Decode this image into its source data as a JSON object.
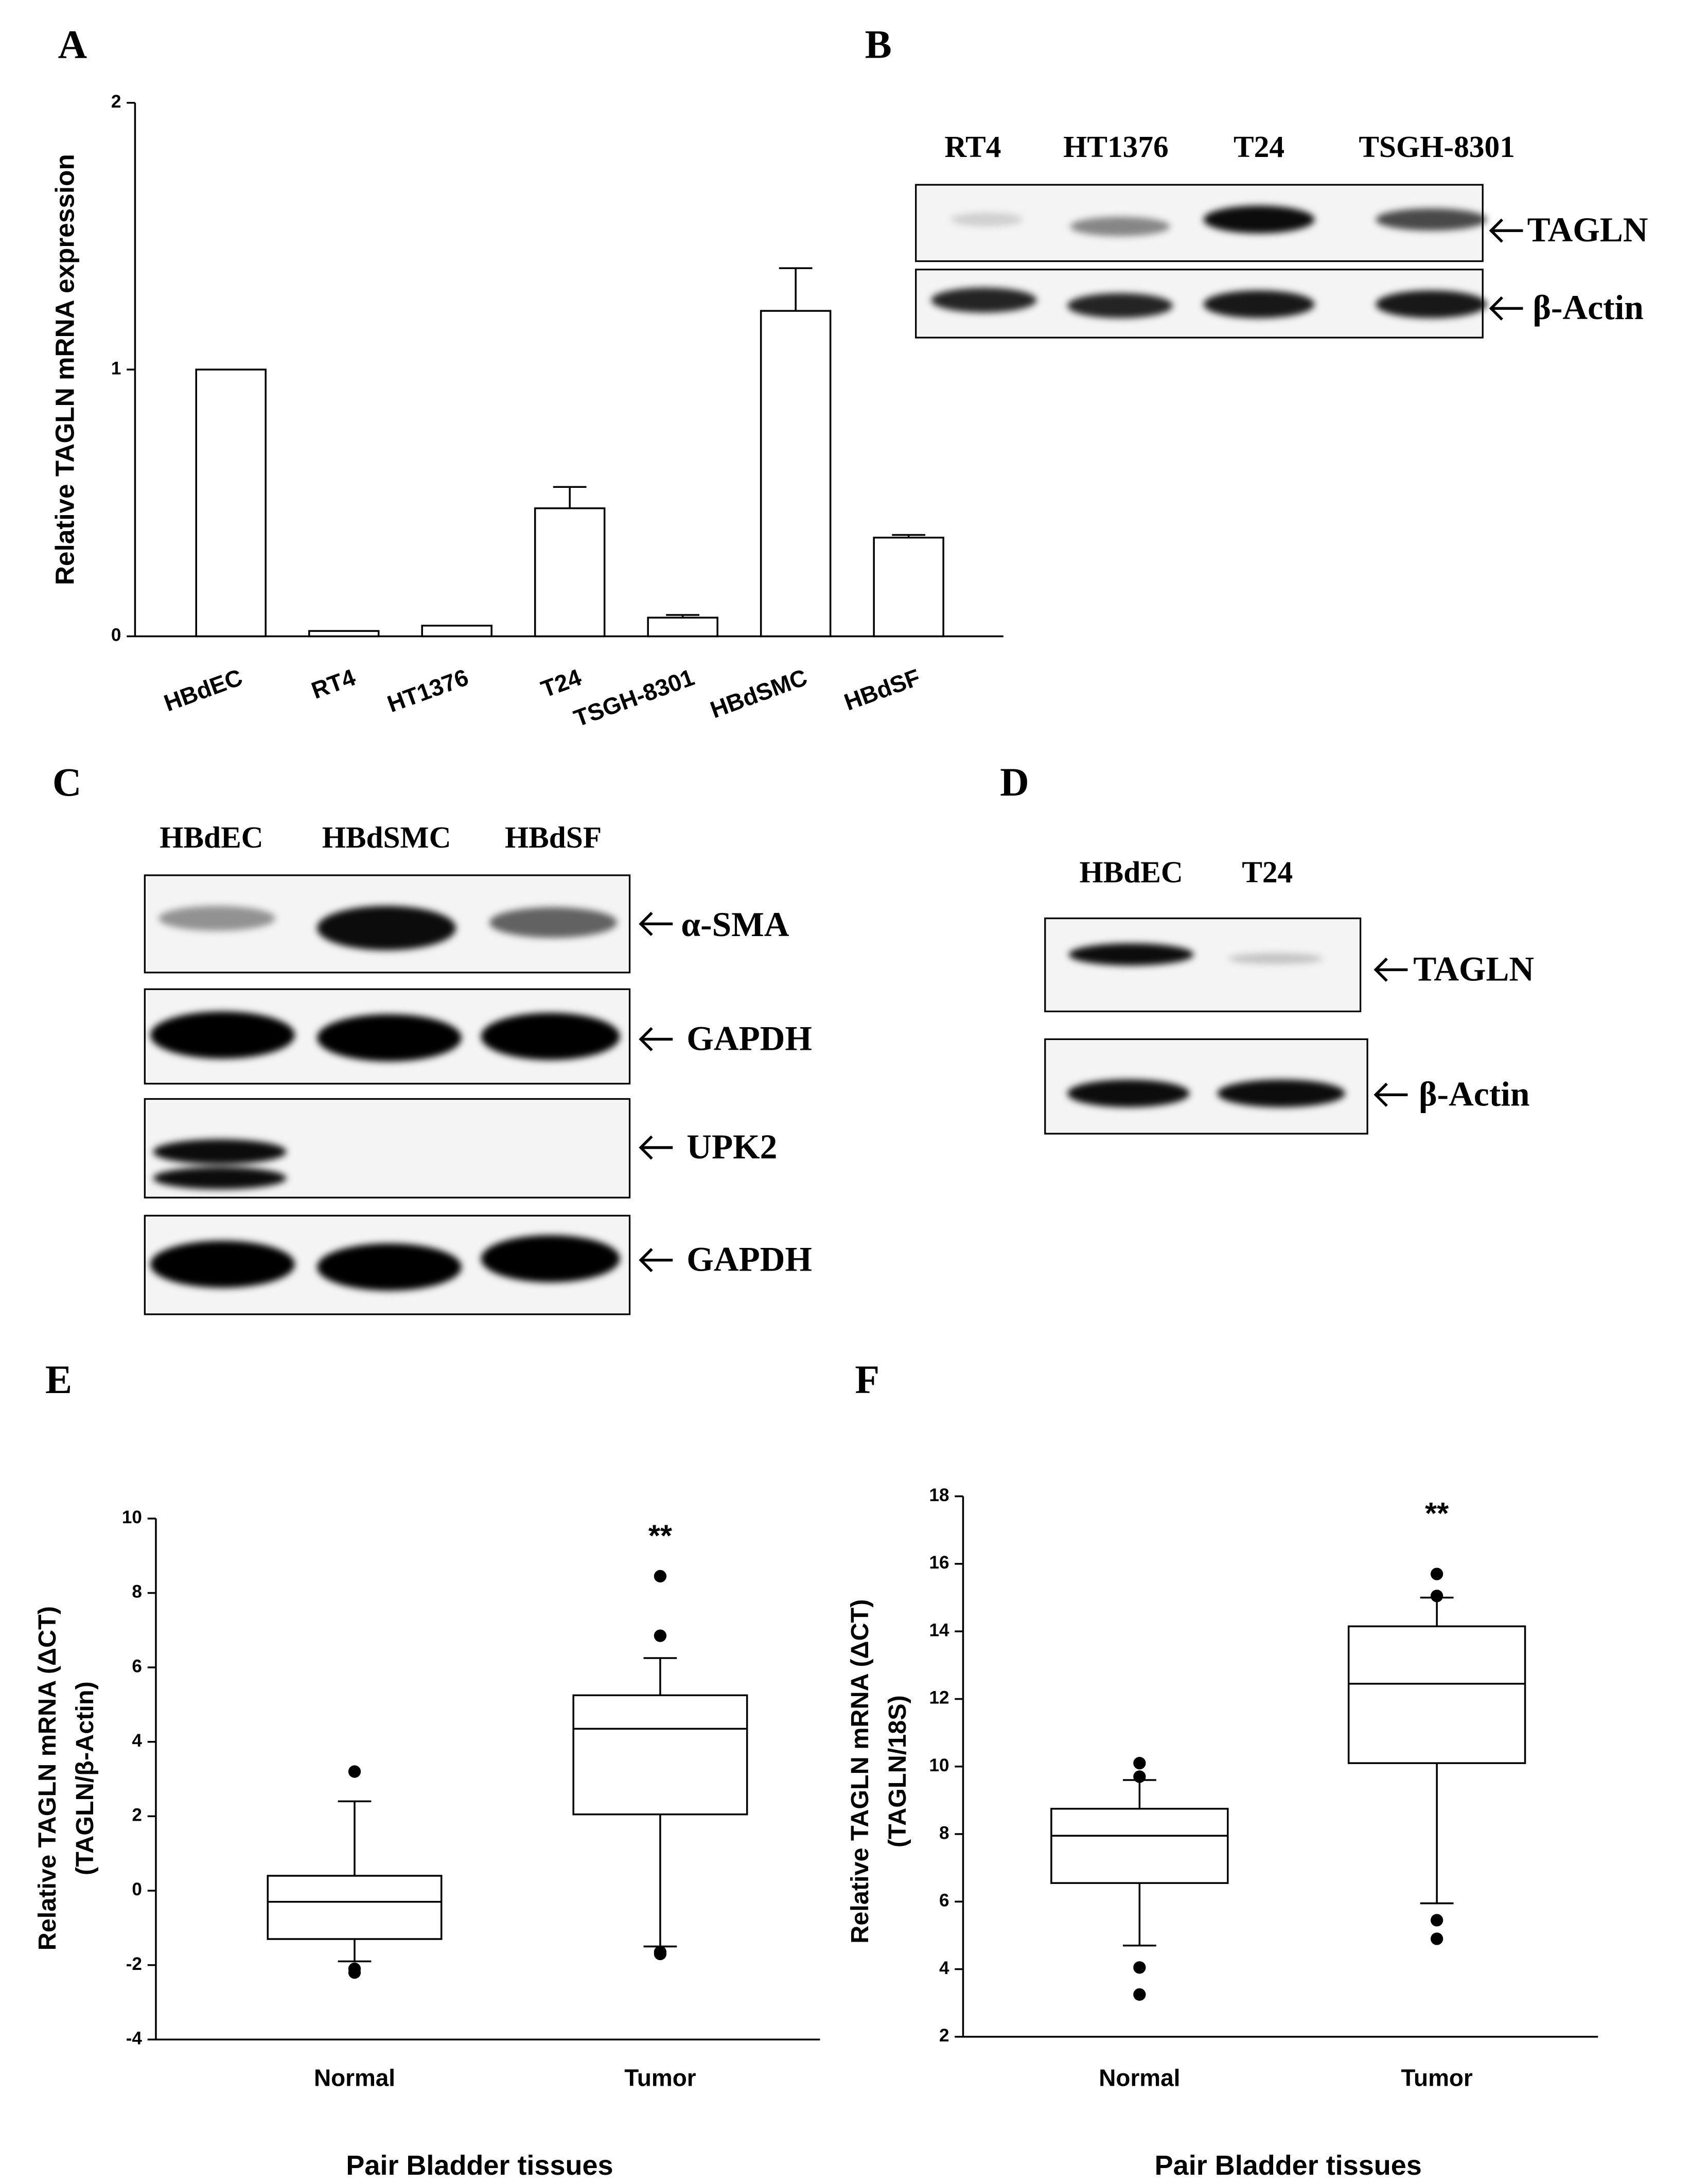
{
  "panel_labels": [
    "A",
    "B",
    "C",
    "D",
    "E",
    "F"
  ],
  "chart_data": [
    {
      "type": "bar",
      "ylabel": [
        "Relative TAGLN mRNA expression"
      ],
      "categories": [
        "HBdEC",
        "RT4",
        "HT1376",
        "T24",
        "TSGH-8301",
        "HBdSMC",
        "HBdSF"
      ],
      "values": [
        1.0,
        0.02,
        0.04,
        0.48,
        0.07,
        1.22,
        0.37
      ],
      "errors": [
        0,
        0,
        0,
        0.08,
        0.01,
        0.16,
        0.01
      ],
      "color": "#ffffff",
      "ylim": [
        0,
        2
      ],
      "yticks": [
        0,
        1,
        2
      ]
    },
    {
      "type": "box",
      "ylabel": [
        "Relative TAGLN mRNA (ΔCT)",
        "(TAGLN/β-Actin)"
      ],
      "xlabel": "Pair Bladder tissues",
      "categories": [
        "Normal",
        "Tumor"
      ],
      "annotations": [
        "",
        "**"
      ],
      "boxes": [
        {
          "whisker_low": -1.9,
          "q1": -1.3,
          "median": -0.3,
          "q3": 0.4,
          "whisker_high": 2.4,
          "outliers": [
            3.2,
            -2.1,
            -2.2
          ]
        },
        {
          "whisker_low": -1.5,
          "q1": 2.05,
          "median": 4.35,
          "q3": 5.25,
          "whisker_high": 6.25,
          "outliers": [
            8.45,
            6.85,
            -1.65,
            -1.7
          ]
        }
      ],
      "ylim": [
        -4,
        10
      ],
      "yticks": [
        -4,
        -2,
        0,
        2,
        4,
        6,
        8,
        10
      ]
    },
    {
      "type": "box",
      "ylabel": [
        "Relative TAGLN mRNA (ΔCT)",
        "(TAGLN/18S)"
      ],
      "xlabel": "Pair Bladder tissues",
      "categories": [
        "Normal",
        "Tumor"
      ],
      "annotations": [
        "",
        "**"
      ],
      "boxes": [
        {
          "whisker_low": 4.7,
          "q1": 6.55,
          "median": 7.95,
          "q3": 8.75,
          "whisker_high": 9.6,
          "outliers": [
            10.1,
            9.7,
            4.05,
            3.25
          ]
        },
        {
          "whisker_low": 5.95,
          "q1": 10.1,
          "median": 12.45,
          "q3": 14.15,
          "whisker_high": 15.0,
          "outliers": [
            15.7,
            15.05,
            5.45,
            4.9
          ]
        }
      ],
      "ylim": [
        2,
        18
      ],
      "yticks": [
        2,
        4,
        6,
        8,
        10,
        12,
        14,
        16,
        18
      ]
    }
  ],
  "blots": [
    {
      "lanes": [
        "RT4",
        "HT1376",
        "T24",
        "TSGH-8301"
      ],
      "rows": [
        "TAGLN",
        "β-Actin"
      ]
    },
    {
      "lanes": [
        "HBdEC",
        "HBdSMC",
        "HBdSF"
      ],
      "rows": [
        "α-SMA",
        "GAPDH",
        "UPK2",
        "GAPDH"
      ]
    },
    {
      "lanes": [
        "HBdEC",
        "T24"
      ],
      "rows": [
        "TAGLN",
        "β-Actin"
      ]
    }
  ]
}
